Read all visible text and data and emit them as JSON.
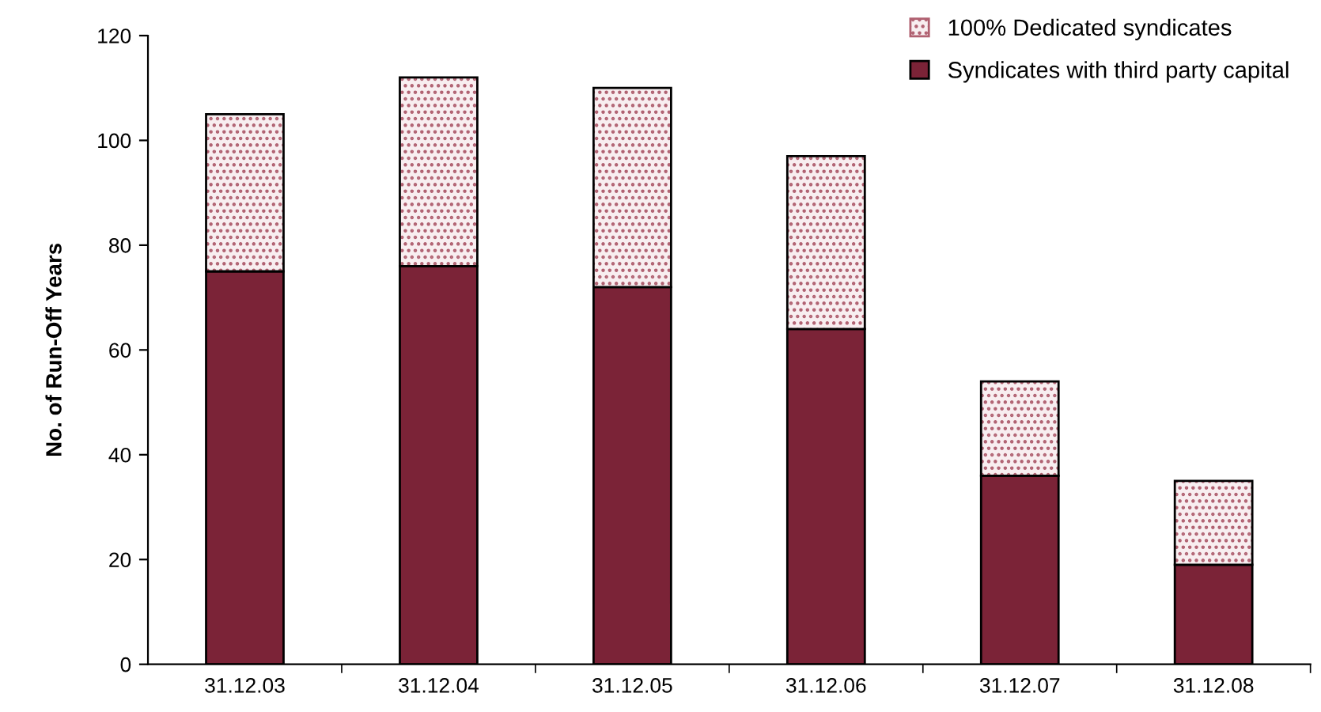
{
  "chart_data": {
    "type": "bar",
    "stacked": true,
    "ylabel": "No. of Run-Off Years",
    "categories": [
      "31.12.03",
      "31.12.04",
      "31.12.05",
      "31.12.06",
      "31.12.07",
      "31.12.08"
    ],
    "series": [
      {
        "name": "Syndicates with third party capital",
        "color": "#7b2337",
        "values": [
          75,
          76,
          72,
          64,
          36,
          19
        ]
      },
      {
        "name": "100% Dedicated syndicates",
        "color": "#b06070",
        "values": [
          30,
          36,
          38,
          33,
          18,
          16
        ]
      }
    ],
    "ylim": [
      0,
      120
    ],
    "yticks": [
      0,
      20,
      40,
      60,
      80,
      100,
      120
    ],
    "grid": false,
    "legend": "top right"
  }
}
